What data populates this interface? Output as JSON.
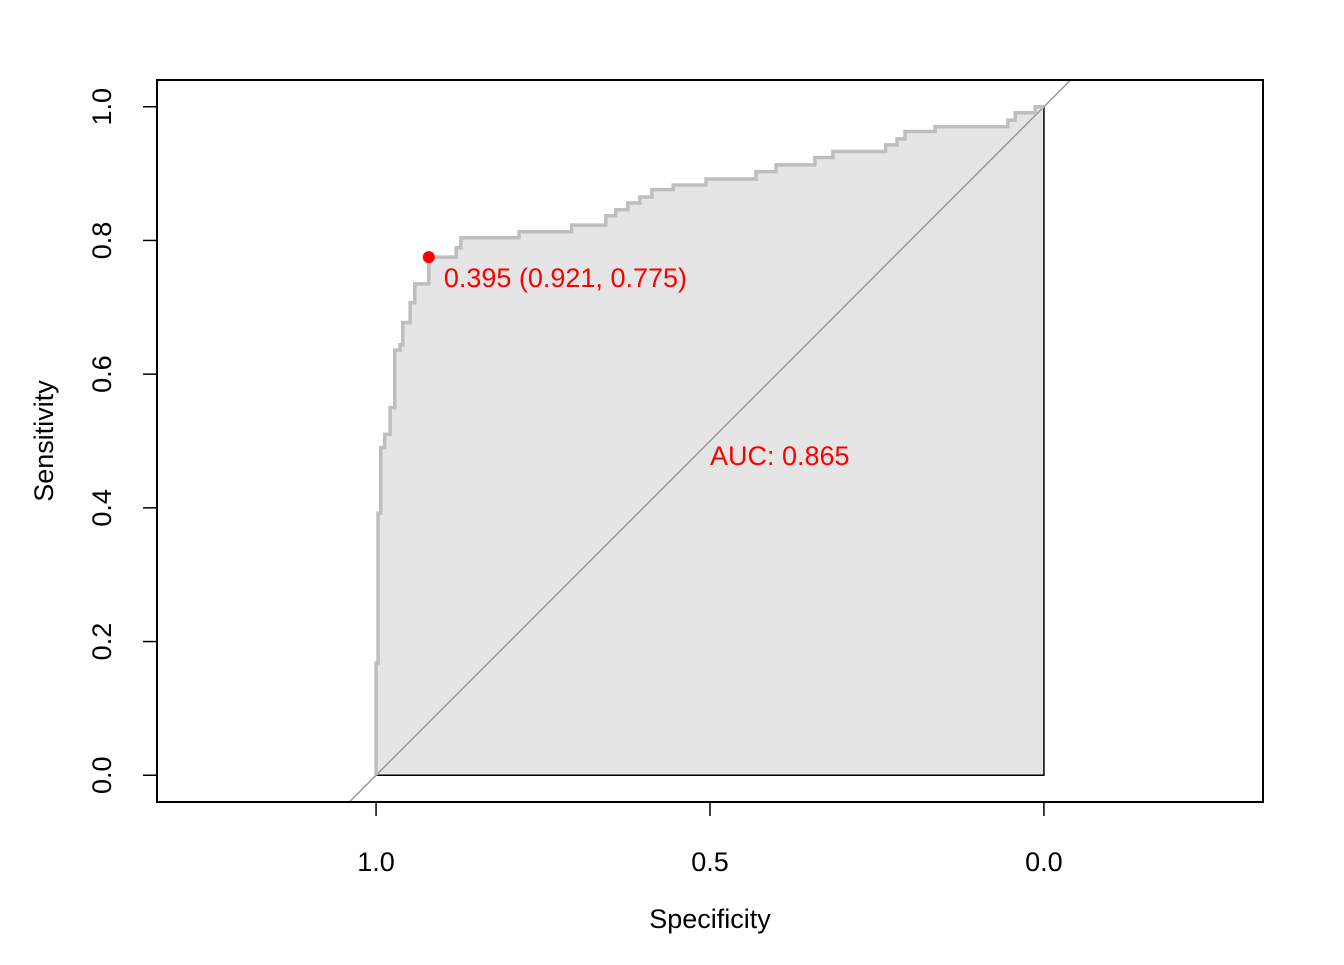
{
  "chart_data": {
    "type": "roc",
    "x_label": "Specificity",
    "y_label": "Sensitivity",
    "xlim": [
      1.328,
      -0.328
    ],
    "ylim": [
      -0.04,
      1.04
    ],
    "xticks": [
      {
        "value": 1,
        "label": "1.0"
      },
      {
        "value": 0.5,
        "label": "0.5"
      },
      {
        "value": 0,
        "label": "0.0"
      }
    ],
    "yticks": [
      {
        "value": 0,
        "label": "0.0"
      },
      {
        "value": 0.2,
        "label": "0.2"
      },
      {
        "value": 0.4,
        "label": "0.4"
      },
      {
        "value": 0.6,
        "label": "0.6"
      },
      {
        "value": 0.8,
        "label": "0.8"
      },
      {
        "value": 1,
        "label": "1.0"
      }
    ],
    "x_reversed": true,
    "color": "#bebebe",
    "fill": "#e5e5e5",
    "annotation_color": "#ff0000",
    "series": [
      {
        "x": [
          1,
          1,
          0.997,
          0.997,
          0.993,
          0.993,
          0.987,
          0.987,
          0.979,
          0.979,
          0.972,
          0.972,
          0.964,
          0.964,
          0.96,
          0.96,
          0.949,
          0.949,
          0.942,
          0.942,
          0.921,
          0.921,
          0.88,
          0.88,
          0.873,
          0.873,
          0.786,
          0.786,
          0.707,
          0.707,
          0.656,
          0.656,
          0.641,
          0.641,
          0.623,
          0.623,
          0.605,
          0.605,
          0.587,
          0.587,
          0.555,
          0.555,
          0.506,
          0.506,
          0.431,
          0.431,
          0.401,
          0.401,
          0.343,
          0.343,
          0.316,
          0.316,
          0.237,
          0.237,
          0.22,
          0.22,
          0.208,
          0.208,
          0.163,
          0.163,
          0.054,
          0.054,
          0.043,
          0.043,
          0.013,
          0.013,
          0
        ],
        "values": [
          0,
          0.168,
          0.168,
          0.392,
          0.392,
          0.49,
          0.49,
          0.51,
          0.51,
          0.55,
          0.55,
          0.636,
          0.636,
          0.644,
          0.644,
          0.677,
          0.677,
          0.707,
          0.707,
          0.735,
          0.735,
          0.775,
          0.775,
          0.789,
          0.789,
          0.804,
          0.804,
          0.813,
          0.813,
          0.823,
          0.823,
          0.837,
          0.837,
          0.846,
          0.846,
          0.856,
          0.856,
          0.865,
          0.865,
          0.876,
          0.876,
          0.883,
          0.883,
          0.892,
          0.892,
          0.903,
          0.903,
          0.913,
          0.913,
          0.924,
          0.924,
          0.933,
          0.933,
          0.943,
          0.943,
          0.952,
          0.952,
          0.963,
          0.963,
          0.97,
          0.97,
          0.98,
          0.98,
          0.991,
          0.991,
          1,
          1
        ]
      }
    ],
    "best_point": {
      "x": 0.921,
      "y": 0.775,
      "label": "0.395 (0.921, 0.775)"
    },
    "auc": {
      "value": 0.865,
      "label": "AUC: 0.865"
    }
  }
}
